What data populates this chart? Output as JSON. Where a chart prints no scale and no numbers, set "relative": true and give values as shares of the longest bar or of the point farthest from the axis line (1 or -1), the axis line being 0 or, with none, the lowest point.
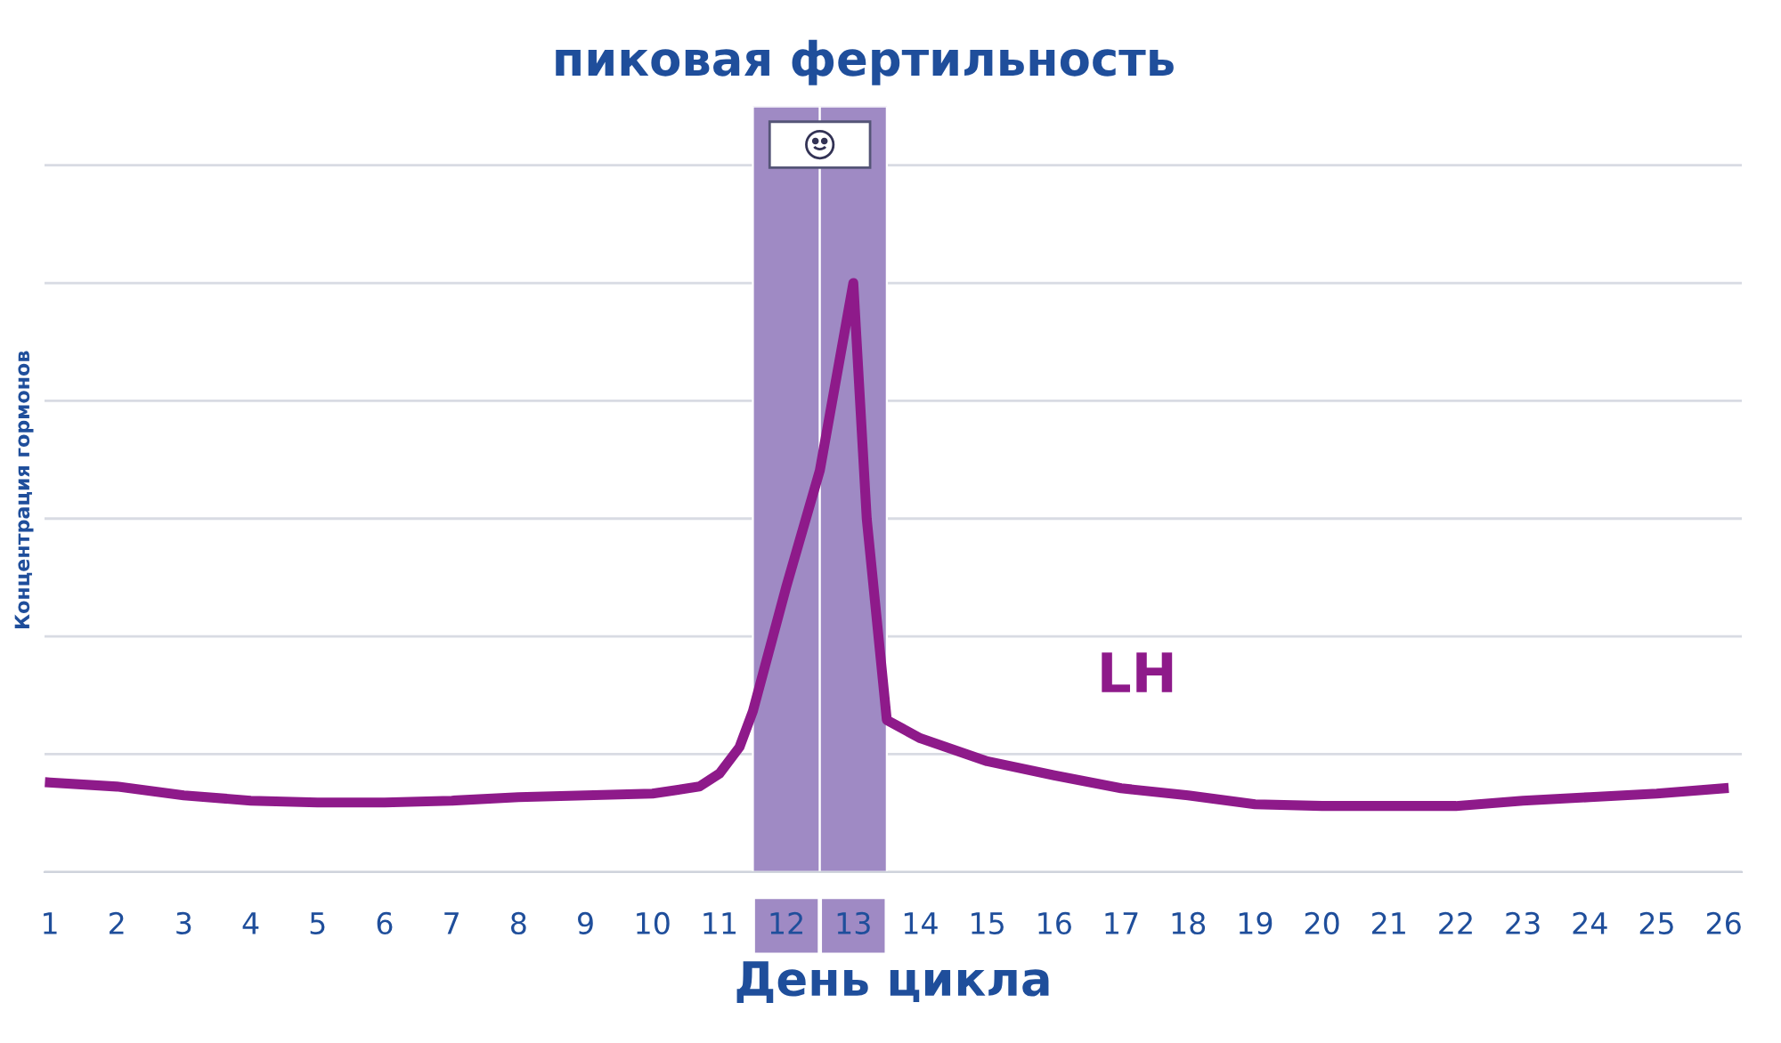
{
  "chart_data": {
    "type": "line",
    "title": "пиковая фертильность",
    "xlabel": "День цикла",
    "ylabel": "Концентрация гормонов",
    "relative": true,
    "grid": "y",
    "legend": false,
    "marker": "none",
    "line_style": "solid",
    "x": [
      1,
      2,
      3,
      4,
      5,
      6,
      7,
      8,
      9,
      10,
      10.7,
      11,
      11.3,
      11.5,
      12,
      12.5,
      13,
      13.2,
      13.5,
      14,
      15,
      16,
      17,
      18,
      19,
      20,
      21,
      22,
      23,
      24,
      25,
      26
    ],
    "xlim": [
      0.92,
      26.27
    ],
    "xticks": [
      1,
      2,
      3,
      4,
      5,
      6,
      7,
      8,
      9,
      10,
      11,
      12,
      13,
      14,
      15,
      16,
      17,
      18,
      19,
      20,
      21,
      22,
      23,
      24,
      25,
      26
    ],
    "series": [
      {
        "name": "LH",
        "color": "#8e1a8a",
        "values": [
          0.152,
          0.145,
          0.13,
          0.121,
          0.118,
          0.118,
          0.121,
          0.127,
          0.13,
          0.133,
          0.145,
          0.167,
          0.212,
          0.273,
          0.485,
          0.682,
          1.0,
          0.6,
          0.258,
          0.227,
          0.188,
          0.164,
          0.142,
          0.13,
          0.115,
          0.112,
          0.112,
          0.112,
          0.121,
          0.127,
          0.133,
          0.142
        ]
      }
    ],
    "bands": [
      {
        "axis": "x",
        "from": 11.5,
        "to": 12.5,
        "color": "#9f8ac4"
      },
      {
        "axis": "x",
        "from": 12.5,
        "to": 13.5,
        "color": "#9f8ac4"
      }
    ]
  }
}
